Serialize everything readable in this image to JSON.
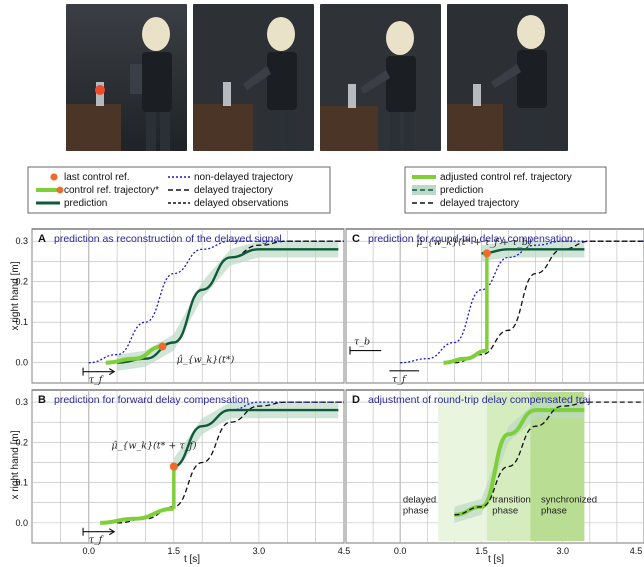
{
  "legend_left": {
    "items": [
      {
        "label": "last control ref.",
        "symbol": "orange-dot"
      },
      {
        "label": "control ref. trajectory*",
        "symbol": "light-green-line-dot"
      },
      {
        "label": "prediction",
        "symbol": "dark-green-line"
      },
      {
        "label": "non-delayed trajectory",
        "symbol": "blue-dotted"
      },
      {
        "label": "delayed trajectory",
        "symbol": "black-dashed-long"
      },
      {
        "label": "delayed observations",
        "symbol": "black-dashed-short"
      }
    ]
  },
  "legend_right": {
    "items": [
      {
        "label": "adjusted control ref. trajectory",
        "symbol": "light-green-thick"
      },
      {
        "label": "prediction",
        "symbol": "dark-green-dashed-band"
      },
      {
        "label": "delayed trajectory",
        "symbol": "black-dashed"
      }
    ]
  },
  "colors": {
    "blue": "#1a1ad0",
    "dark_green": "#0f5a3a",
    "light_green": "#7fcf3a",
    "band": "#bcd8c6",
    "orange": "#f06a2a",
    "grid": "#b9b9b9",
    "title": "#2a2aa0"
  },
  "axes": {
    "ylabel": "x right hand [m]",
    "xlabel": "t [s]",
    "xticks": [
      "0.0",
      "1.5",
      "3.0",
      "4.5"
    ],
    "yticks": [
      "0.3",
      "0.2",
      "0.1",
      "0.0"
    ]
  },
  "panels": [
    {
      "letter": "A",
      "title": "prediction as reconstruction of the delayed signal",
      "annotation": "μ̂_{w_k}(t*)",
      "tau_label": "τ_f"
    },
    {
      "letter": "C",
      "title": "prediction for round-trip delay compensation",
      "annotation": "μ̂_{w_k}(t* + τ_f + τ_b)",
      "tau_label_1": "τ_b",
      "tau_label_2": "τ_f"
    },
    {
      "letter": "B",
      "title": "prediction for forward delay compensation",
      "annotation": "μ̂_{w_k}(t* + τ_f)",
      "tau_label": "τ_f"
    },
    {
      "letter": "D",
      "title": "adjustment of round-trip delay compensated traj",
      "phases": [
        "delayed\nphase",
        "transition\nphase",
        "synchronized\nphase"
      ]
    }
  ],
  "chart_data": [
    {
      "type": "line",
      "panel": "A",
      "title": "prediction as reconstruction of the delayed signal",
      "xlabel": "t [s]",
      "ylabel": "x right hand [m]",
      "xlim": [
        -1.0,
        4.5
      ],
      "ylim": [
        -0.05,
        0.33
      ],
      "series": [
        {
          "name": "non-delayed trajectory",
          "x": [
            0.0,
            0.5,
            1.0,
            1.5,
            2.0,
            2.5,
            3.0,
            3.5,
            4.5
          ],
          "y": [
            0.0,
            0.02,
            0.1,
            0.22,
            0.28,
            0.3,
            0.3,
            0.3,
            0.3
          ]
        },
        {
          "name": "delayed trajectory",
          "x": [
            0.5,
            1.0,
            1.5,
            2.0,
            2.5,
            3.0,
            3.5,
            4.5
          ],
          "y": [
            0.0,
            0.01,
            0.05,
            0.18,
            0.26,
            0.29,
            0.3,
            0.3
          ]
        },
        {
          "name": "prediction",
          "x": [
            0.5,
            1.0,
            1.5,
            2.0,
            2.5,
            3.0,
            3.5,
            4.4
          ],
          "y": [
            0.0,
            0.01,
            0.05,
            0.18,
            0.26,
            0.28,
            0.28,
            0.28
          ]
        }
      ]
    },
    {
      "type": "line",
      "panel": "C",
      "title": "prediction for round-trip delay compensation",
      "xlabel": "t [s]",
      "xlim": [
        -1.0,
        4.5
      ],
      "ylim": [
        -0.05,
        0.33
      ],
      "series": [
        {
          "name": "non-delayed trajectory",
          "x": [
            0.0,
            0.5,
            1.0,
            1.5,
            2.0,
            2.5,
            3.0,
            3.5,
            4.5
          ],
          "y": [
            0.0,
            0.01,
            0.05,
            0.18,
            0.26,
            0.29,
            0.3,
            0.3,
            0.3
          ]
        },
        {
          "name": "delayed trajectory",
          "x": [
            1.0,
            1.5,
            2.0,
            2.5,
            3.0,
            3.5,
            4.5
          ],
          "y": [
            0.0,
            0.02,
            0.08,
            0.22,
            0.28,
            0.3,
            0.3
          ]
        },
        {
          "name": "prediction",
          "x": [
            1.5,
            2.0,
            2.5,
            3.0,
            3.4
          ],
          "y": [
            0.27,
            0.28,
            0.28,
            0.28,
            0.28
          ]
        }
      ]
    },
    {
      "type": "line",
      "panel": "B",
      "title": "prediction for forward delay compensation",
      "xlabel": "t [s]",
      "ylabel": "x right hand [m]",
      "xlim": [
        -1.0,
        4.5
      ],
      "ylim": [
        -0.05,
        0.33
      ],
      "series": [
        {
          "name": "non-delayed trajectory",
          "x": [
            1.5,
            2.0,
            2.5,
            3.0,
            3.5,
            4.5
          ],
          "y": [
            0.14,
            0.24,
            0.28,
            0.3,
            0.3,
            0.3
          ]
        },
        {
          "name": "delayed trajectory",
          "x": [
            0.5,
            1.0,
            1.5,
            2.0,
            2.5,
            3.0,
            3.5,
            4.5
          ],
          "y": [
            0.0,
            0.01,
            0.04,
            0.15,
            0.25,
            0.29,
            0.3,
            0.3
          ]
        },
        {
          "name": "prediction",
          "x": [
            1.5,
            2.0,
            2.5,
            3.0,
            3.5,
            4.4
          ],
          "y": [
            0.14,
            0.24,
            0.28,
            0.28,
            0.28,
            0.28
          ]
        }
      ]
    },
    {
      "type": "line",
      "panel": "D",
      "title": "adjustment of round-trip delay compensated traj",
      "xlabel": "t [s]",
      "xlim": [
        -1.0,
        4.5
      ],
      "ylim": [
        -0.05,
        0.33
      ],
      "series": [
        {
          "name": "adjusted control ref. trajectory",
          "x": [
            1.0,
            1.5,
            2.0,
            2.5,
            3.0,
            3.4
          ],
          "y": [
            0.02,
            0.04,
            0.22,
            0.28,
            0.28,
            0.28
          ]
        },
        {
          "name": "delayed trajectory",
          "x": [
            1.0,
            1.5,
            2.0,
            2.5,
            3.0,
            3.5,
            4.5
          ],
          "y": [
            0.02,
            0.04,
            0.14,
            0.24,
            0.29,
            0.3,
            0.3
          ]
        }
      ]
    }
  ]
}
